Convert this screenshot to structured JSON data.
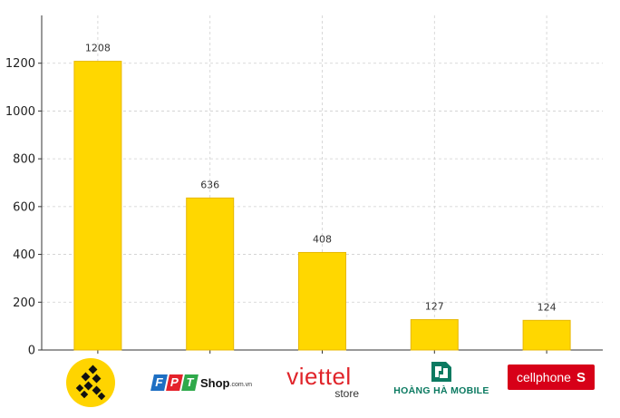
{
  "chart_data": {
    "type": "bar",
    "categories": [
      "The Gioi Di Dong",
      "FPT Shop",
      "Viettel Store",
      "Hoang Ha Mobile",
      "CellphoneS"
    ],
    "values": [
      1208,
      636,
      408,
      127,
      124
    ],
    "data_labels": [
      "1208",
      "636",
      "408",
      "127",
      "124"
    ],
    "title": "",
    "xlabel": "",
    "ylabel": "",
    "ylim": [
      0,
      1400
    ],
    "yticks": [
      0,
      200,
      400,
      600,
      800,
      1000,
      1200
    ],
    "grid": true,
    "bar_color": "#FFD700",
    "bar_edge_color": "#E8B800"
  },
  "logos": {
    "fpt": {
      "letters": [
        "F",
        "P",
        "T"
      ],
      "shop": "Shop",
      "suffix": ".com.vn",
      "colors": [
        "#1e6fc3",
        "#e4222b",
        "#2fa94a"
      ]
    },
    "viettel": {
      "name": "viettel",
      "store": "store",
      "color": "#e0242a"
    },
    "hoangha": {
      "name": "HOÀNG HÀ MOBILE",
      "color": "#0b7a61"
    },
    "cellphones": {
      "name": "cellphone",
      "mark": "S",
      "color": "#d70018"
    },
    "tgdd": {
      "color": "#ffd400"
    }
  }
}
